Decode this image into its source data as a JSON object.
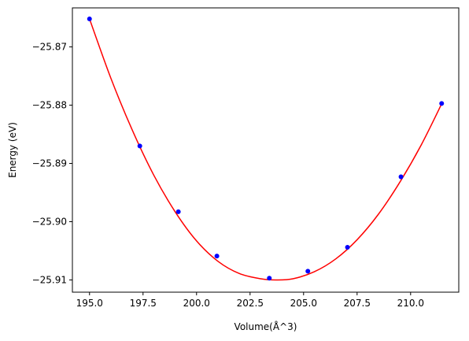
{
  "chart_data": {
    "type": "scatter",
    "xlabel": "Volume(Å^3)",
    "ylabel": "Energy (eV)",
    "xlim": [
      194.2,
      212.25
    ],
    "ylim": [
      -25.9121,
      -25.8633
    ],
    "x_ticks": [
      195.0,
      197.5,
      200.0,
      202.5,
      205.0,
      207.5,
      210.0
    ],
    "x_tick_labels": [
      "195.0",
      "197.5",
      "200.0",
      "202.5",
      "205.0",
      "207.5",
      "210.0"
    ],
    "y_ticks": [
      -25.87,
      -25.88,
      -25.89,
      -25.9,
      -25.91
    ],
    "y_tick_labels": [
      "−25.87",
      "−25.88",
      "−25.89",
      "−25.90",
      "−25.91"
    ],
    "grid": false,
    "series": [
      {
        "kind": "points",
        "color": "#0000ff",
        "x": [
          195.0,
          197.35,
          199.15,
          200.95,
          203.4,
          205.2,
          207.05,
          209.55,
          211.45
        ],
        "y": [
          -25.8652,
          -25.887,
          -25.8983,
          -25.9059,
          -25.9097,
          -25.9085,
          -25.9044,
          -25.8923,
          -25.8797
        ]
      },
      {
        "kind": "fit-curve",
        "color": "#ff0000",
        "x": [
          195.0,
          196.0,
          197.0,
          198.0,
          199.0,
          200.0,
          201.0,
          202.0,
          203.0,
          203.7,
          204.5,
          205.5,
          206.5,
          207.5,
          208.5,
          209.5,
          210.5,
          211.5
        ],
        "y": [
          -25.8652,
          -25.8754,
          -25.8843,
          -25.892,
          -25.8983,
          -25.9033,
          -25.9068,
          -25.9089,
          -25.9098,
          -25.91,
          -25.9098,
          -25.9086,
          -25.9064,
          -25.9031,
          -25.8987,
          -25.8932,
          -25.8868,
          -25.8794
        ]
      }
    ]
  }
}
